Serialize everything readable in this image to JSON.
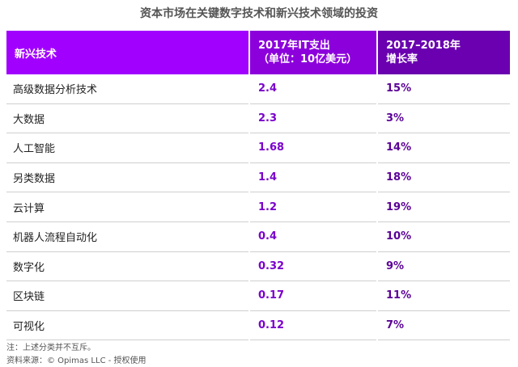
{
  "title": "资本市场在关键数字技术和新兴技术领域的投资",
  "columns": {
    "c1": "新兴技术",
    "c2_line1": "2017年IT支出",
    "c2_line2": "（单位：10亿美元）",
    "c3_line1": "2017–2018年",
    "c3_line2": "增长率"
  },
  "chart_data": {
    "type": "table",
    "title": "资本市场在关键数字技术和新兴技术领域的投资",
    "headers": [
      "新兴技术",
      "2017年IT支出（单位：10亿美元）",
      "2017–2018年增长率"
    ],
    "rows": [
      {
        "tech": "高级数据分析技术",
        "spend": "2.4",
        "growth": "15%"
      },
      {
        "tech": "大数据",
        "spend": "2.3",
        "growth": "3%"
      },
      {
        "tech": "人工智能",
        "spend": "1.68",
        "growth": "14%"
      },
      {
        "tech": "另类数据",
        "spend": "1.4",
        "growth": "18%"
      },
      {
        "tech": "云计算",
        "spend": "1.2",
        "growth": "19%"
      },
      {
        "tech": "机器人流程自动化",
        "spend": "0.4",
        "growth": "10%"
      },
      {
        "tech": "数字化",
        "spend": "0.32",
        "growth": "9%"
      },
      {
        "tech": "区块链",
        "spend": "0.17",
        "growth": "11%"
      },
      {
        "tech": "可视化",
        "spend": "0.12",
        "growth": "7%"
      }
    ]
  },
  "footnotes": {
    "note": "注：上述分类并不互斥。",
    "source": "资料来源：© Opimas LLC - 授权使用"
  },
  "colors": {
    "header_1": "#a100ff",
    "header_2": "#8c00dc",
    "header_3": "#6a00b0",
    "value_text": "#7a00cc"
  }
}
